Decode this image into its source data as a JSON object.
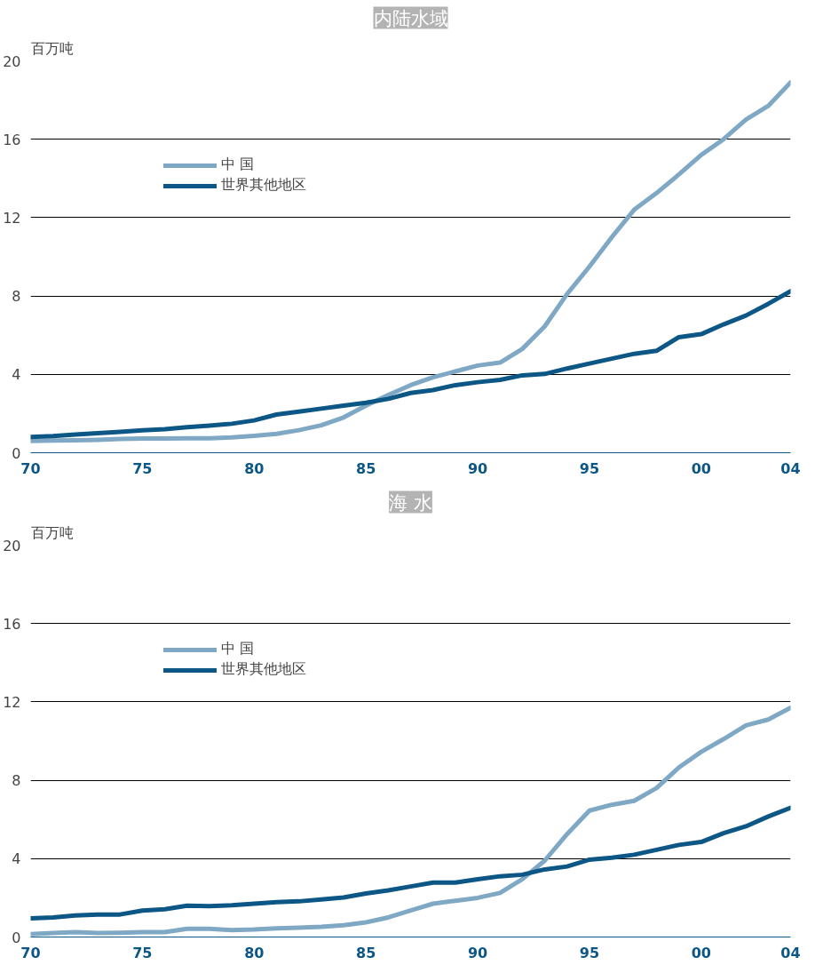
{
  "chart_data": [
    {
      "type": "line",
      "title": "内陆水域",
      "ylabel": "百万吨",
      "x": [
        1970,
        1971,
        1972,
        1973,
        1974,
        1975,
        1976,
        1977,
        1978,
        1979,
        1980,
        1981,
        1982,
        1983,
        1984,
        1985,
        1986,
        1987,
        1988,
        1989,
        1990,
        1991,
        1992,
        1993,
        1994,
        1995,
        1996,
        1997,
        1998,
        1999,
        2000,
        2001,
        2002,
        2003,
        2004
      ],
      "series": [
        {
          "name": "中 国",
          "color": "#7fa8c4",
          "values": [
            0.6,
            0.62,
            0.63,
            0.66,
            0.7,
            0.72,
            0.72,
            0.74,
            0.74,
            0.78,
            0.86,
            0.96,
            1.15,
            1.4,
            1.8,
            2.4,
            2.95,
            3.45,
            3.85,
            4.15,
            4.45,
            4.6,
            5.3,
            6.45,
            8.1,
            9.5,
            11.0,
            12.4,
            13.25,
            14.2,
            15.2,
            16.0,
            17.0,
            17.7,
            18.9
          ]
        },
        {
          "name": "世界其他地区",
          "color": "#0d5786",
          "values": [
            0.8,
            0.85,
            0.93,
            1.0,
            1.07,
            1.15,
            1.2,
            1.3,
            1.38,
            1.48,
            1.65,
            1.95,
            2.1,
            2.25,
            2.4,
            2.55,
            2.75,
            3.05,
            3.2,
            3.45,
            3.6,
            3.72,
            3.95,
            4.02,
            4.3,
            4.55,
            4.8,
            5.05,
            5.2,
            5.9,
            6.05,
            6.55,
            7.0,
            7.6,
            8.25
          ]
        }
      ],
      "xlim": [
        1970,
        2004
      ],
      "xticks": [
        {
          "value": 1970,
          "label": "70"
        },
        {
          "value": 1975,
          "label": "75"
        },
        {
          "value": 1980,
          "label": "80"
        },
        {
          "value": 1985,
          "label": "85"
        },
        {
          "value": 1990,
          "label": "90"
        },
        {
          "value": 1995,
          "label": "95"
        },
        {
          "value": 2000,
          "label": "00"
        },
        {
          "value": 2004,
          "label": "04"
        }
      ],
      "ylim": [
        0,
        20
      ],
      "yticks": [
        0,
        4,
        8,
        12,
        16,
        20
      ],
      "grid": "y",
      "legend": "top left",
      "marker": "none",
      "line_style": "solid"
    },
    {
      "type": "line",
      "title": "海 水",
      "ylabel": "百万吨",
      "x": [
        1970,
        1971,
        1972,
        1973,
        1974,
        1975,
        1976,
        1977,
        1978,
        1979,
        1980,
        1981,
        1982,
        1983,
        1984,
        1985,
        1986,
        1987,
        1988,
        1989,
        1990,
        1991,
        1992,
        1993,
        1994,
        1995,
        1996,
        1997,
        1998,
        1999,
        2000,
        2001,
        2002,
        2003,
        2004
      ],
      "series": [
        {
          "name": "中 国",
          "color": "#7fa8c4",
          "values": [
            0.15,
            0.2,
            0.25,
            0.2,
            0.22,
            0.25,
            0.25,
            0.42,
            0.42,
            0.35,
            0.38,
            0.44,
            0.48,
            0.52,
            0.6,
            0.75,
            1.0,
            1.35,
            1.7,
            1.85,
            2.0,
            2.25,
            2.95,
            3.9,
            5.25,
            6.45,
            6.75,
            6.95,
            7.6,
            8.65,
            9.45,
            10.1,
            10.8,
            11.1,
            11.7
          ]
        },
        {
          "name": "世界其他地区",
          "color": "#0d5786",
          "values": [
            0.95,
            1.0,
            1.1,
            1.15,
            1.15,
            1.35,
            1.42,
            1.6,
            1.58,
            1.62,
            1.7,
            1.78,
            1.82,
            1.92,
            2.02,
            2.22,
            2.38,
            2.58,
            2.78,
            2.78,
            2.95,
            3.1,
            3.18,
            3.45,
            3.6,
            3.95,
            4.05,
            4.2,
            4.45,
            4.7,
            4.85,
            5.3,
            5.65,
            6.15,
            6.6
          ]
        }
      ],
      "xlim": [
        1970,
        2004
      ],
      "xticks": [
        {
          "value": 1970,
          "label": "70"
        },
        {
          "value": 1975,
          "label": "75"
        },
        {
          "value": 1980,
          "label": "80"
        },
        {
          "value": 1985,
          "label": "85"
        },
        {
          "value": 1990,
          "label": "90"
        },
        {
          "value": 1995,
          "label": "95"
        },
        {
          "value": 2000,
          "label": "00"
        },
        {
          "value": 2004,
          "label": "04"
        }
      ],
      "ylim": [
        0,
        20
      ],
      "yticks": [
        0,
        4,
        8,
        12,
        16,
        20
      ],
      "grid": "y",
      "legend": "top left",
      "marker": "none",
      "line_style": "solid"
    }
  ]
}
